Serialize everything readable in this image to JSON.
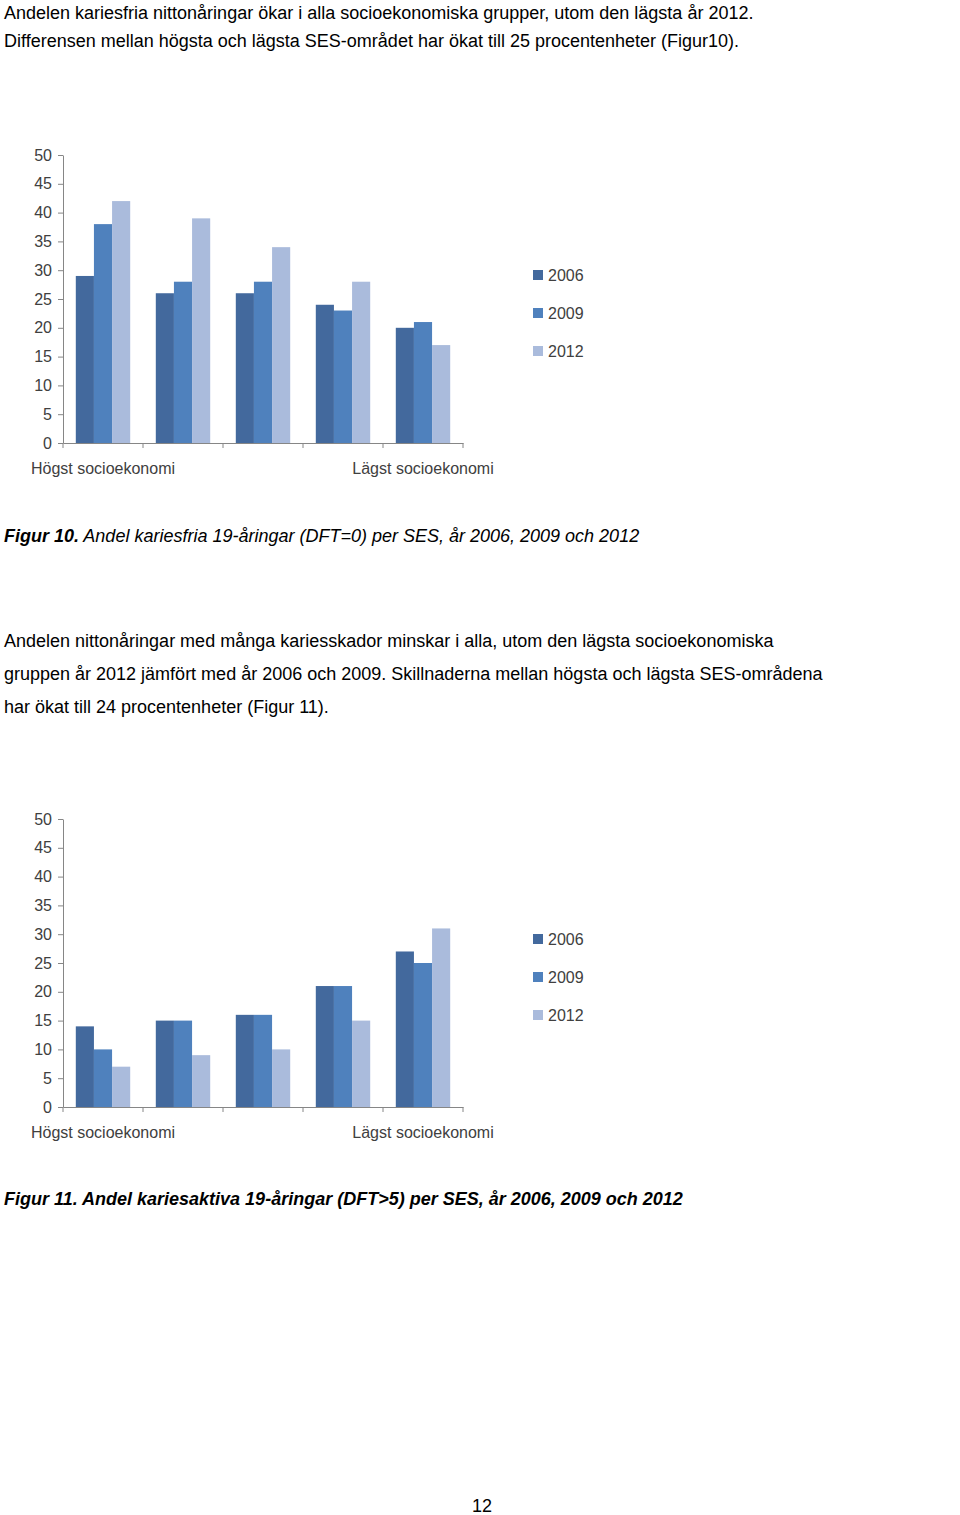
{
  "document": {
    "paragraphs": [
      [
        "Andelen kariesfria nittonåringar ökar i alla socioekonomiska grupper, utom den lägsta år 2012.",
        "Differensen mellan högsta och lägsta SES-området har ökat till 25 procentenheter (Figur10)."
      ],
      [
        "Andelen nittonåringar med många kariesskador minskar i alla, utom den lägsta socioekonomiska",
        "gruppen år 2012 jämfört med år 2006 och 2009. Skillnaderna mellan högsta och lägsta SES-områdena",
        "har ökat till 24 procentenheter (Figur 11)."
      ]
    ],
    "page_number": "12"
  },
  "chart_data": [
    {
      "type": "bar",
      "title": "Figur 10. Andel kariesfria 19-åringar (DFT=0) per SES, år 2006, 2009 och 2012",
      "categories": [
        "Högst socioekonomi",
        null,
        null,
        null,
        "Lägst socioekonomi"
      ],
      "series": [
        {
          "name": "2006",
          "color": "#43699d",
          "values": [
            29,
            26,
            26,
            24,
            20
          ]
        },
        {
          "name": "2009",
          "color": "#4f81bd",
          "values": [
            38,
            28,
            28,
            23,
            21
          ]
        },
        {
          "name": "2012",
          "color": "#aabbdc",
          "values": [
            42,
            39,
            34,
            28,
            17
          ]
        }
      ],
      "ylim": [
        0,
        50
      ],
      "yticks": [
        0,
        5,
        10,
        15,
        20,
        25,
        30,
        35,
        40,
        45,
        50
      ],
      "grid": false,
      "legend": "right"
    },
    {
      "type": "bar",
      "title": "Figur 11. Andel kariesaktiva 19-åringar (DFT>5) per SES, år 2006, 2009 och 2012",
      "categories": [
        "Högst socioekonomi",
        null,
        null,
        null,
        "Lägst socioekonomi"
      ],
      "series": [
        {
          "name": "2006",
          "color": "#43699d",
          "values": [
            14,
            15,
            16,
            21,
            27
          ]
        },
        {
          "name": "2009",
          "color": "#4f81bd",
          "values": [
            10,
            15,
            16,
            21,
            25
          ]
        },
        {
          "name": "2012",
          "color": "#aabbdc",
          "values": [
            7,
            9,
            10,
            15,
            31
          ]
        }
      ],
      "ylim": [
        0,
        50
      ],
      "yticks": [
        0,
        5,
        10,
        15,
        20,
        25,
        30,
        35,
        40,
        45,
        50
      ],
      "grid": false,
      "legend": "right"
    }
  ]
}
